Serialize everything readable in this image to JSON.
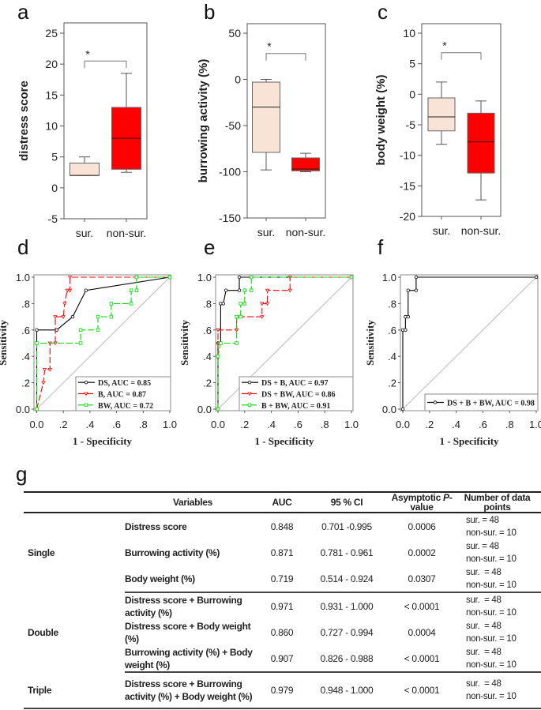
{
  "panel_labels": [
    "a",
    "b",
    "c",
    "d",
    "e",
    "f",
    "g"
  ],
  "chart_data": [
    {
      "type": "box",
      "panel": "a",
      "ylabel": "distress score",
      "ylim": [
        -5,
        25
      ],
      "yticks": [
        -5,
        0,
        5,
        10,
        15,
        20,
        25
      ],
      "ytick_labels": [
        "-5",
        "0",
        "5",
        "10",
        "15",
        "20",
        "25"
      ],
      "categories": [
        "sur.",
        "non-sur."
      ],
      "boxes": [
        {
          "group": "sur.",
          "whisker_low": 2,
          "q1": 2,
          "median": 2,
          "q3": 4,
          "whisker_high": 5,
          "color": "#f9e3d6"
        },
        {
          "group": "non-sur.",
          "whisker_low": 2.5,
          "q1": 3,
          "median": 8,
          "q3": 13,
          "whisker_high": 18.5,
          "color": "#ff0000"
        }
      ],
      "significance": {
        "label": "*",
        "y": 20.5
      }
    },
    {
      "type": "box",
      "panel": "b",
      "ylabel": "burrowing activity (%)",
      "ylim": [
        -150,
        50
      ],
      "yticks": [
        -150,
        -100,
        -50,
        0,
        50
      ],
      "ytick_labels": [
        "-150",
        "-100",
        "-50",
        "0",
        "50"
      ],
      "categories": [
        "sur.",
        "non-sur."
      ],
      "boxes": [
        {
          "group": "sur.",
          "whisker_low": -98,
          "q1": -79,
          "median": -30,
          "q3": -3,
          "whisker_high": 0,
          "color": "#f9e3d6"
        },
        {
          "group": "non-sur.",
          "whisker_low": -100,
          "q1": -99,
          "median": -97,
          "q3": -85,
          "whisker_high": -80,
          "color": "#ff0000"
        }
      ],
      "significance": {
        "label": "*",
        "y": 28
      }
    },
    {
      "type": "box",
      "panel": "c",
      "ylabel": "body weight (%)",
      "ylim": [
        -20,
        10
      ],
      "yticks": [
        -20,
        -15,
        -10,
        -5,
        0,
        5,
        10
      ],
      "ytick_labels": [
        "-20",
        "-15",
        "-10",
        "-5",
        "0",
        "5",
        "10"
      ],
      "categories": [
        "sur.",
        "non-sur."
      ],
      "boxes": [
        {
          "group": "sur.",
          "whisker_low": -8.2,
          "q1": -6,
          "median": -3.7,
          "q3": -0.6,
          "whisker_high": 2,
          "color": "#f9e3d6"
        },
        {
          "group": "non-sur.",
          "whisker_low": -17.3,
          "q1": -12.9,
          "median": -7.8,
          "q3": -3.1,
          "whisker_high": -1.1,
          "color": "#ff0000"
        }
      ],
      "significance": {
        "label": "*",
        "y": 6.8
      }
    },
    {
      "type": "line",
      "panel": "d",
      "xlabel": "1 - Specificity",
      "ylabel": "Sensitivity",
      "xlim": [
        0,
        1
      ],
      "ylim": [
        0,
        1
      ],
      "xtick_labels": [
        "0.0",
        ".2",
        ".4",
        ".6",
        ".8",
        "1.0"
      ],
      "ytick_labels": [
        "0.0",
        ".2",
        ".4",
        ".6",
        ".8",
        "1.0"
      ],
      "legend_position": "bottom-right",
      "series": [
        {
          "name": "DS, AUC = 0.85",
          "color": "#000000",
          "dash": "",
          "marker": "circle",
          "x": [
            0,
            0,
            0.15,
            0.27,
            0.37,
            1
          ],
          "y": [
            0,
            0.6,
            0.6,
            0.7,
            0.9,
            1
          ]
        },
        {
          "name": "B, AUC = 0.87",
          "color": "#ff0000",
          "dash": "8,3",
          "marker": "triangle",
          "x": [
            0,
            0.05,
            0.06,
            0.1,
            0.1,
            0.14,
            0.14,
            0.2,
            0.21,
            0.23,
            0.25,
            0.25,
            1
          ],
          "y": [
            0,
            0.2,
            0.3,
            0.3,
            0.5,
            0.5,
            0.7,
            0.7,
            0.8,
            0.9,
            0.9,
            1,
            1
          ]
        },
        {
          "name": "BW, AUC = 0.72",
          "color": "#00dd00",
          "dash": "8,3",
          "marker": "square",
          "x": [
            0,
            0,
            0.33,
            0.33,
            0.46,
            0.46,
            0.56,
            0.56,
            0.71,
            0.71,
            0.75,
            0.75,
            1
          ],
          "y": [
            0,
            0.5,
            0.5,
            0.6,
            0.6,
            0.7,
            0.7,
            0.8,
            0.8,
            0.9,
            0.9,
            1,
            1
          ]
        }
      ]
    },
    {
      "type": "line",
      "panel": "e",
      "xlabel": "1 - Specificity",
      "ylabel": "Sensitivity",
      "xlim": [
        0,
        1
      ],
      "ylim": [
        0,
        1
      ],
      "xtick_labels": [
        "0.0",
        ".2",
        ".4",
        ".6",
        ".8",
        "1.0"
      ],
      "ytick_labels": [
        "0.0",
        ".2",
        ".4",
        ".6",
        ".8",
        "1.0"
      ],
      "legend_position": "bottom-right",
      "series": [
        {
          "name": "DS + B, AUC = 0.97",
          "color": "#000000",
          "dash": "",
          "marker": "circle",
          "x": [
            0,
            0,
            0.02,
            0.02,
            0.04,
            0.06,
            0.16,
            0.16,
            1
          ],
          "y": [
            0,
            0.5,
            0.5,
            0.8,
            0.8,
            0.9,
            0.9,
            1,
            1
          ]
        },
        {
          "name": "DS + BW, AUC = 0.86",
          "color": "#ff0000",
          "dash": "8,3",
          "marker": "triangle",
          "x": [
            0,
            0,
            0.14,
            0.14,
            0.33,
            0.33,
            0.37,
            0.37,
            0.54,
            0.54,
            1
          ],
          "y": [
            0,
            0.6,
            0.6,
            0.7,
            0.7,
            0.8,
            0.8,
            0.9,
            0.9,
            1,
            1
          ]
        },
        {
          "name": "B + BW, AUC = 0.91",
          "color": "#00dd00",
          "dash": "8,3",
          "marker": "square",
          "x": [
            0,
            0,
            0.02,
            0.14,
            0.14,
            0.17,
            0.17,
            0.2,
            0.2,
            0.25,
            0.25,
            1
          ],
          "y": [
            0,
            0.4,
            0.5,
            0.5,
            0.7,
            0.7,
            0.8,
            0.8,
            0.9,
            0.9,
            1,
            1
          ]
        }
      ]
    },
    {
      "type": "line",
      "panel": "f",
      "xlabel": "1 - Specificity",
      "ylabel": "Sensitivity",
      "xlim": [
        0,
        1
      ],
      "ylim": [
        0,
        1
      ],
      "xtick_labels": [
        "0.0",
        ".2",
        ".4",
        ".6",
        ".8",
        "1.0"
      ],
      "ytick_labels": [
        "0.0",
        ".2",
        ".4",
        ".6",
        ".8",
        "1.0"
      ],
      "legend_position": "bottom-right",
      "series": [
        {
          "name": "DS + B + BW, AUC = 0.98",
          "color": "#000000",
          "dash": "",
          "marker": "circle",
          "x": [
            0,
            0,
            0.02,
            0.02,
            0.04,
            0.04,
            0.1,
            0.1,
            1
          ],
          "y": [
            0,
            0.6,
            0.6,
            0.7,
            0.7,
            0.9,
            0.9,
            1,
            1
          ]
        }
      ]
    }
  ],
  "table": {
    "headers": [
      "",
      "Variables",
      "AUC",
      "95 % CI",
      "Asymptotic P-value",
      "Number of data points"
    ],
    "header_parts": {
      "p_prefix": "Asymptotic ",
      "p_italic": "P",
      "p_suffix": "-value"
    },
    "rows": [
      {
        "group": "Single",
        "variable": "Distress score",
        "auc": "0.848",
        "ci": "0.701 -0.995",
        "p": "0.0006",
        "n1": "sur. = 48",
        "n2": "non-sur. = 10"
      },
      {
        "group": "",
        "variable": "Burrowing activity (%)",
        "auc": "0.871",
        "ci": "0.781 - 0.961",
        "p": "0.0002",
        "n1": "sur. = 48",
        "n2": "non-sur. = 10"
      },
      {
        "group": "",
        "variable": "Body weight (%)",
        "auc": "0.719",
        "ci": "0.514 - 0.924",
        "p": "0.0307",
        "n1": "sur.  = 48",
        "n2": "non-sur. = 10"
      },
      {
        "group": "Double",
        "variable": "Distress score + Burrowing activity (%)",
        "auc": "0.971",
        "ci": "0.931 - 1.000",
        "p": "< 0.0001",
        "n1": "sur.  = 48",
        "n2": "non-sur. = 10"
      },
      {
        "group": "",
        "variable": "Distress score + Body weight (%)",
        "auc": "0.860",
        "ci": "0.727 - 0.994",
        "p": "0.0004",
        "n1": "sur.  = 48",
        "n2": "non-sur. = 10"
      },
      {
        "group": "",
        "variable": "Burrowing activity (%) + Body weight (%)",
        "auc": "0.907",
        "ci": "0.826 - 0.988",
        "p": "< 0.0001",
        "n1": "sur.  = 48",
        "n2": "non-sur. = 10"
      },
      {
        "group": "Triple",
        "variable": "Distress score + Burrowing activity (%) + Body weight (%)",
        "auc": "0.979",
        "ci": "0.948 - 1.000",
        "p": "< 0.0001",
        "n1": "sur.  = 48",
        "n2": "non-sur. = 10"
      }
    ]
  }
}
